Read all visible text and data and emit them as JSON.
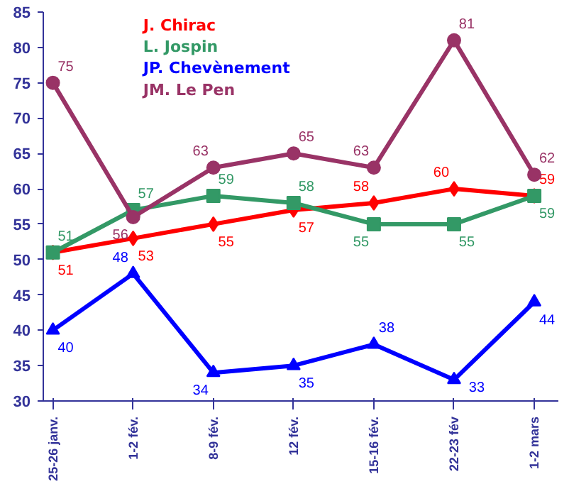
{
  "chart_data": {
    "type": "line",
    "categories": [
      "25-26 janv.",
      "1-2 fév.",
      "8-9 fév.",
      "12 fév.",
      "15-16 fév.",
      "22-23 fév",
      "1-2 mars"
    ],
    "series": [
      {
        "name": "J. Chirac",
        "color": "#ff0000",
        "marker": "diamond",
        "values": [
          51,
          53,
          55,
          57,
          58,
          60,
          59
        ]
      },
      {
        "name": "L. Jospin",
        "color": "#339966",
        "marker": "square",
        "values": [
          51,
          57,
          59,
          58,
          55,
          55,
          59
        ]
      },
      {
        "name": "JP. Chevènement",
        "color": "#0000ff",
        "marker": "triangle",
        "values": [
          40,
          48,
          34,
          35,
          38,
          33,
          44
        ]
      },
      {
        "name": "JM. Le Pen",
        "color": "#993366",
        "marker": "circle",
        "values": [
          75,
          56,
          63,
          65,
          63,
          81,
          62
        ]
      }
    ],
    "ylim": [
      30,
      85
    ],
    "yticks": [
      30,
      35,
      40,
      45,
      50,
      55,
      60,
      65,
      70,
      75,
      80,
      85
    ],
    "data_labels": true,
    "legend": "top left",
    "grid": false
  }
}
